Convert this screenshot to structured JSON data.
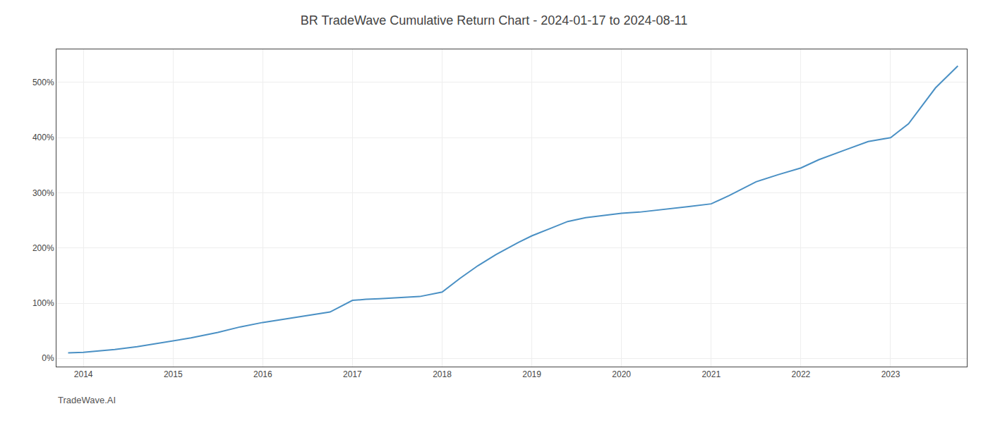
{
  "chart_data": {
    "type": "line",
    "title": "BR TradeWave Cumulative Return Chart - 2024-01-17 to 2024-08-11",
    "annotations": [
      "TradeWave.AI"
    ],
    "x": [
      2013.83,
      2014.0,
      2014.15,
      2014.35,
      2014.6,
      2014.83,
      2015.0,
      2015.2,
      2015.5,
      2015.75,
      2016.0,
      2016.2,
      2016.5,
      2016.75,
      2017.0,
      2017.15,
      2017.3,
      2017.5,
      2017.75,
      2018.0,
      2018.2,
      2018.4,
      2018.6,
      2018.85,
      2019.0,
      2019.2,
      2019.4,
      2019.6,
      2019.83,
      2020.0,
      2020.2,
      2020.5,
      2020.75,
      2021.0,
      2021.2,
      2021.5,
      2021.75,
      2022.0,
      2022.2,
      2022.5,
      2022.75,
      2023.0,
      2023.2,
      2023.5,
      2023.75
    ],
    "values": [
      10,
      11,
      13,
      16,
      21,
      27,
      32,
      37,
      47,
      57,
      65,
      70,
      78,
      84,
      105,
      107,
      108,
      110,
      112,
      120,
      145,
      168,
      188,
      210,
      222,
      235,
      248,
      255,
      260,
      263,
      265,
      270,
      275,
      280,
      295,
      320,
      333,
      345,
      360,
      378,
      393,
      400,
      425,
      490,
      530
    ],
    "color": "#4a90c4",
    "xlim": [
      2013.7,
      2023.85
    ],
    "xticks": [
      2014,
      2015,
      2016,
      2017,
      2018,
      2019,
      2020,
      2021,
      2022,
      2023
    ],
    "ylim": [
      -15,
      560
    ],
    "yticks": [
      {
        "value": 0,
        "label": "0%"
      },
      {
        "value": 100,
        "label": "100%"
      },
      {
        "value": 200,
        "label": "200%"
      },
      {
        "value": 300,
        "label": "300%"
      },
      {
        "value": 400,
        "label": "400%"
      },
      {
        "value": 500,
        "label": "500%"
      }
    ],
    "grid": true
  }
}
